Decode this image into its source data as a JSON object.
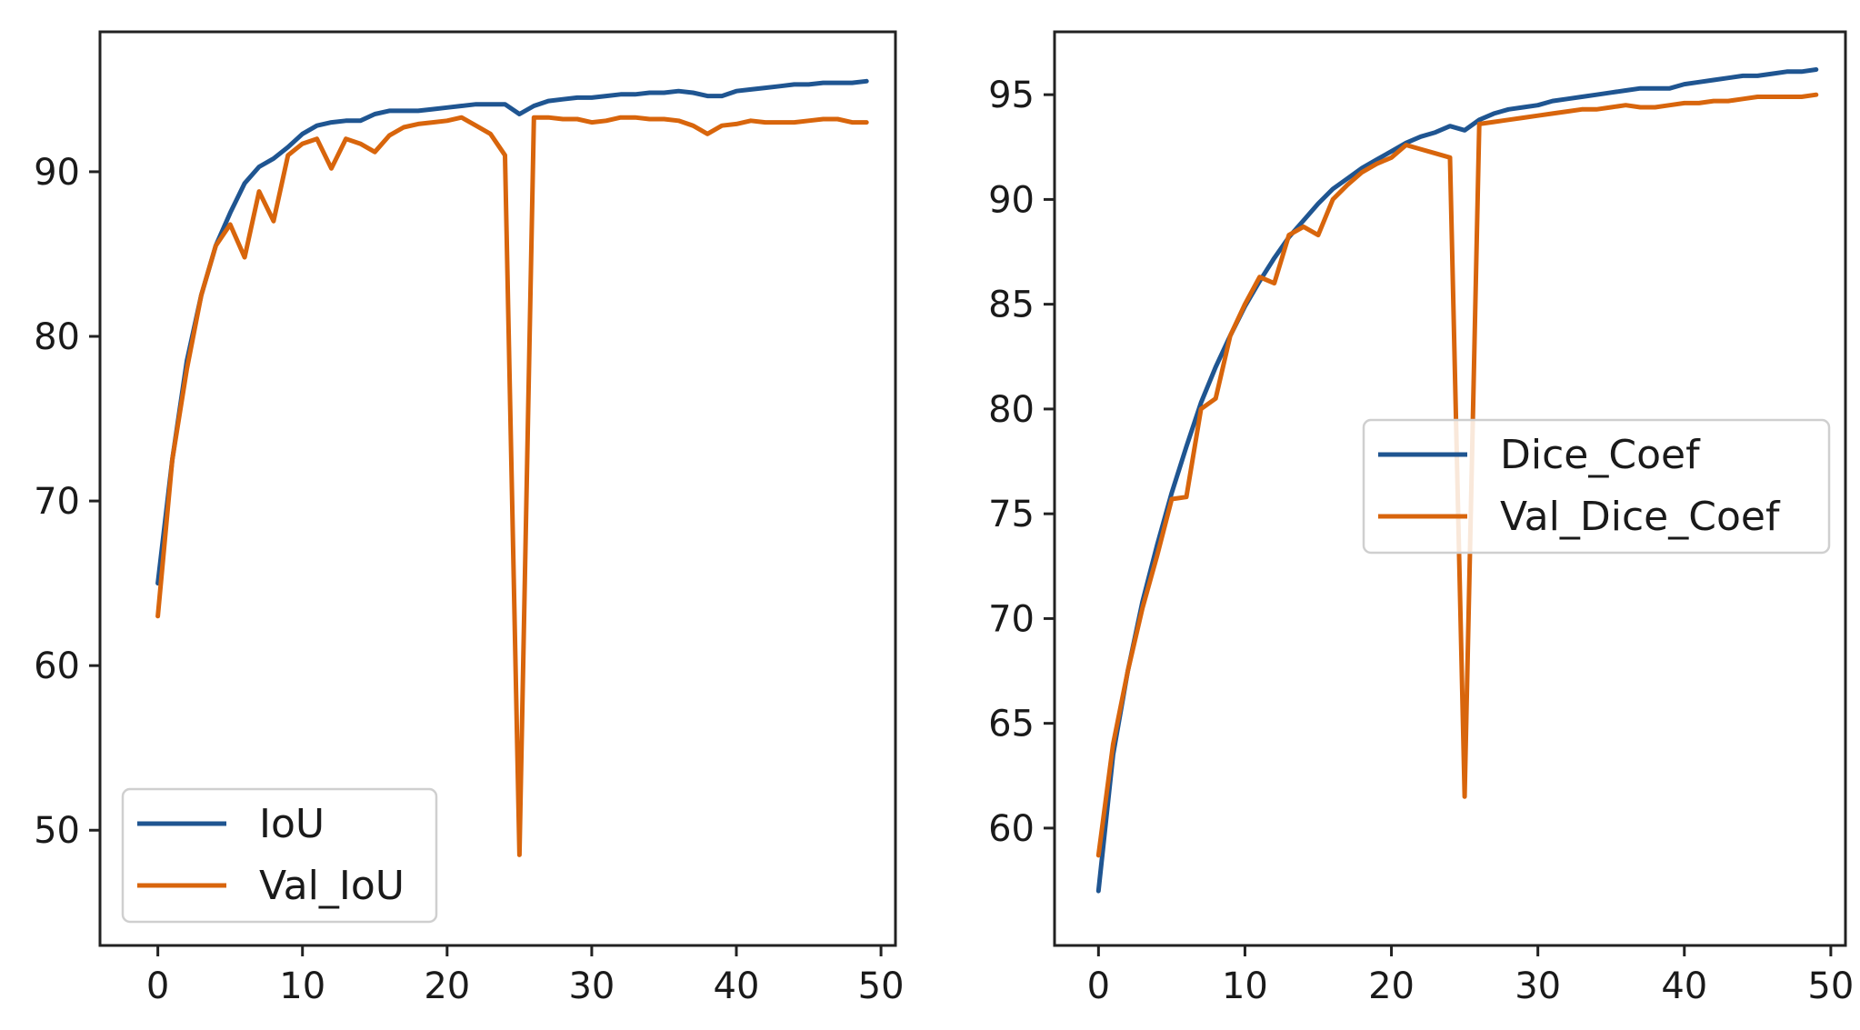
{
  "colors": {
    "train": "#1f5591",
    "val": "#d8650c"
  },
  "chart_data": [
    {
      "type": "line",
      "title": "",
      "xlabel": "",
      "ylabel": "",
      "xlim": [
        -4,
        51
      ],
      "ylim": [
        43,
        98.5
      ],
      "xticks": [
        0,
        10,
        20,
        30,
        40,
        50
      ],
      "yticks": [
        50,
        60,
        70,
        80,
        90
      ],
      "grid": false,
      "legend_position": "lower-left",
      "series": [
        {
          "name": "IoU",
          "color": "#1f5591",
          "x": [
            0,
            1,
            2,
            3,
            4,
            5,
            6,
            7,
            8,
            9,
            10,
            11,
            12,
            13,
            14,
            15,
            16,
            17,
            18,
            19,
            20,
            21,
            22,
            23,
            24,
            25,
            26,
            27,
            28,
            29,
            30,
            31,
            32,
            33,
            34,
            35,
            36,
            37,
            38,
            39,
            40,
            41,
            42,
            43,
            44,
            45,
            46,
            47,
            48,
            49
          ],
          "values": [
            65.0,
            72.5,
            78.5,
            82.5,
            85.5,
            87.5,
            89.3,
            90.3,
            90.8,
            91.5,
            92.3,
            92.8,
            93.0,
            93.1,
            93.1,
            93.5,
            93.7,
            93.7,
            93.7,
            93.8,
            93.9,
            94.0,
            94.1,
            94.1,
            94.1,
            93.5,
            94.0,
            94.3,
            94.4,
            94.5,
            94.5,
            94.6,
            94.7,
            94.7,
            94.8,
            94.8,
            94.9,
            94.8,
            94.6,
            94.6,
            94.9,
            95.0,
            95.1,
            95.2,
            95.3,
            95.3,
            95.4,
            95.4,
            95.4,
            95.5
          ]
        },
        {
          "name": "Val_IoU",
          "color": "#d8650c",
          "x": [
            0,
            1,
            2,
            3,
            4,
            5,
            6,
            7,
            8,
            9,
            10,
            11,
            12,
            13,
            14,
            15,
            16,
            17,
            18,
            19,
            20,
            21,
            22,
            23,
            24,
            25,
            26,
            27,
            28,
            29,
            30,
            31,
            32,
            33,
            34,
            35,
            36,
            37,
            38,
            39,
            40,
            41,
            42,
            43,
            44,
            45,
            46,
            47,
            48,
            49
          ],
          "values": [
            63.0,
            72.5,
            78.0,
            82.5,
            85.5,
            86.8,
            84.8,
            88.8,
            87.0,
            91.0,
            91.7,
            92.0,
            90.2,
            92.0,
            91.7,
            91.2,
            92.2,
            92.7,
            92.9,
            93.0,
            93.1,
            93.3,
            92.8,
            92.3,
            91.0,
            48.5,
            93.3,
            93.3,
            93.2,
            93.2,
            93.0,
            93.1,
            93.3,
            93.3,
            93.2,
            93.2,
            93.1,
            92.8,
            92.3,
            92.8,
            92.9,
            93.1,
            93.0,
            93.0,
            93.0,
            93.1,
            93.2,
            93.2,
            93.0,
            93.0
          ]
        }
      ]
    },
    {
      "type": "line",
      "title": "",
      "xlabel": "",
      "ylabel": "",
      "xlim": [
        -3,
        51
      ],
      "ylim": [
        54.4,
        98
      ],
      "xticks": [
        0,
        10,
        20,
        30,
        40,
        50
      ],
      "yticks": [
        60,
        65,
        70,
        75,
        80,
        85,
        90,
        95
      ],
      "grid": false,
      "legend_position": "center-right",
      "series": [
        {
          "name": "Dice_Coef",
          "color": "#1f5591",
          "x": [
            0,
            1,
            2,
            3,
            4,
            5,
            6,
            7,
            8,
            9,
            10,
            11,
            12,
            13,
            14,
            15,
            16,
            17,
            18,
            19,
            20,
            21,
            22,
            23,
            24,
            25,
            26,
            27,
            28,
            29,
            30,
            31,
            32,
            33,
            34,
            35,
            36,
            37,
            38,
            39,
            40,
            41,
            42,
            43,
            44,
            45,
            46,
            47,
            48,
            49
          ],
          "values": [
            57.0,
            63.5,
            67.5,
            70.8,
            73.5,
            76.0,
            78.2,
            80.3,
            82.0,
            83.5,
            84.9,
            86.1,
            87.2,
            88.2,
            89.0,
            89.8,
            90.5,
            91.0,
            91.5,
            91.9,
            92.3,
            92.7,
            93.0,
            93.2,
            93.5,
            93.3,
            93.8,
            94.1,
            94.3,
            94.4,
            94.5,
            94.7,
            94.8,
            94.9,
            95.0,
            95.1,
            95.2,
            95.3,
            95.3,
            95.3,
            95.5,
            95.6,
            95.7,
            95.8,
            95.9,
            95.9,
            96.0,
            96.1,
            96.1,
            96.2
          ]
        },
        {
          "name": "Val_Dice_Coef",
          "color": "#d8650c",
          "x": [
            0,
            1,
            2,
            3,
            4,
            5,
            6,
            7,
            8,
            9,
            10,
            11,
            12,
            13,
            14,
            15,
            16,
            17,
            18,
            19,
            20,
            21,
            22,
            23,
            24,
            25,
            26,
            27,
            28,
            29,
            30,
            31,
            32,
            33,
            34,
            35,
            36,
            37,
            38,
            39,
            40,
            41,
            42,
            43,
            44,
            45,
            46,
            47,
            48,
            49
          ],
          "values": [
            58.7,
            64.0,
            67.5,
            70.5,
            73.0,
            75.7,
            75.8,
            80.0,
            80.5,
            83.5,
            85.0,
            86.3,
            86.0,
            88.3,
            88.7,
            88.3,
            90.0,
            90.7,
            91.3,
            91.7,
            92.0,
            92.6,
            92.4,
            92.2,
            92.0,
            61.5,
            93.6,
            93.7,
            93.8,
            93.9,
            94.0,
            94.1,
            94.2,
            94.3,
            94.3,
            94.4,
            94.5,
            94.4,
            94.4,
            94.5,
            94.6,
            94.6,
            94.7,
            94.7,
            94.8,
            94.9,
            94.9,
            94.9,
            94.9,
            95.0
          ]
        }
      ]
    }
  ]
}
